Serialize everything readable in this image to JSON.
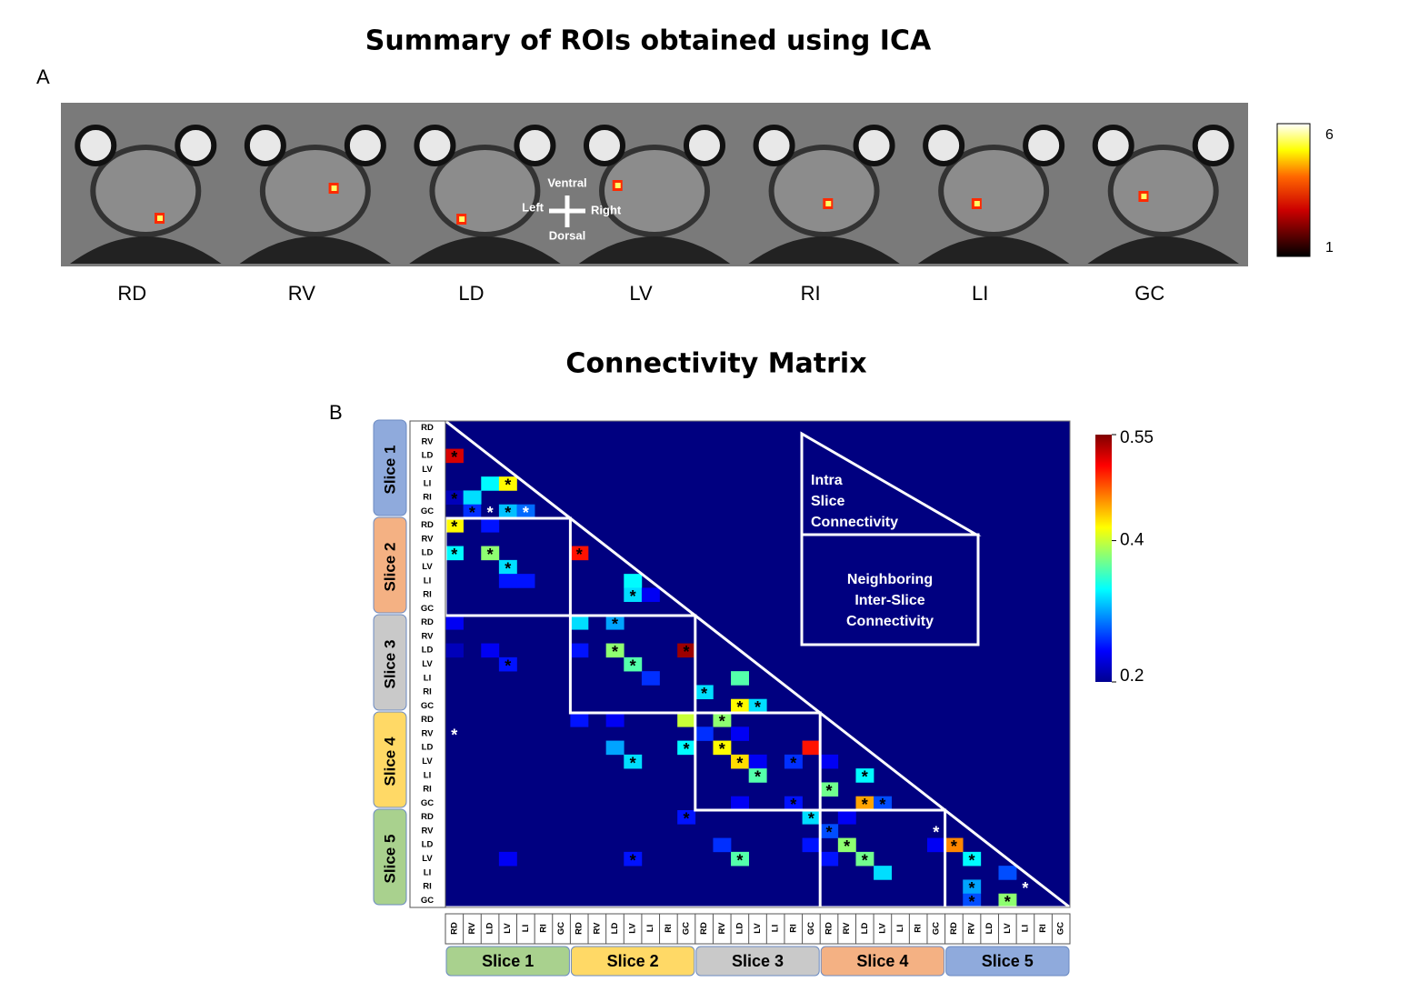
{
  "figure_title": "Summary of ROIs obtained using ICA",
  "panel_a": {
    "label": "A",
    "rois": [
      "RD",
      "RV",
      "LD",
      "LV",
      "RI",
      "LI",
      "GC"
    ],
    "orientation": {
      "up": "Ventral",
      "left": "Left",
      "right": "Right",
      "down": "Dorsal"
    },
    "colorbar": {
      "max": 6,
      "min": 1
    }
  },
  "panel_b": {
    "label": "B",
    "title": "Connectivity Matrix",
    "regions": [
      "RD",
      "RV",
      "LD",
      "LV",
      "LI",
      "RI",
      "GC"
    ],
    "slices": [
      {
        "name": "Slice 1",
        "row_color": "#8faadc",
        "col_color": "#a9d18e"
      },
      {
        "name": "Slice 2",
        "row_color": "#f4b183",
        "col_color": "#ffd966"
      },
      {
        "name": "Slice 3",
        "row_color": "#c9c9c9",
        "col_color": "#c9c9c9"
      },
      {
        "name": "Slice 4",
        "row_color": "#ffd966",
        "col_color": "#f4b183"
      },
      {
        "name": "Slice 5",
        "row_color": "#a9d18e",
        "col_color": "#8faadc"
      }
    ],
    "clim": [
      0.2,
      0.55
    ],
    "cticks": [
      0.55,
      0.4,
      0.2
    ],
    "legend": {
      "intra": [
        "Intra",
        "Slice",
        "Connectivity"
      ],
      "inter": [
        "Neighboring",
        "Inter-Slice",
        "Connectivity"
      ]
    },
    "cells": [
      {
        "row": 2,
        "col": 0,
        "value": 0.52,
        "label": "*"
      },
      {
        "row": 4,
        "col": 2,
        "value": 0.33
      },
      {
        "row": 4,
        "col": 3,
        "value": 0.42,
        "label": "*"
      },
      {
        "row": 5,
        "col": 0,
        "value": 0.22,
        "label": "*"
      },
      {
        "row": 5,
        "col": 1,
        "value": 0.32
      },
      {
        "row": 6,
        "col": 1,
        "value": 0.26,
        "label": "*"
      },
      {
        "row": 6,
        "col": 2,
        "value": 0.2,
        "label": "*",
        "star_color": "white"
      },
      {
        "row": 6,
        "col": 3,
        "value": 0.31,
        "label": "*"
      },
      {
        "row": 6,
        "col": 4,
        "value": 0.28,
        "label": "*",
        "star_color": "white"
      },
      {
        "row": 7,
        "col": 0,
        "value": 0.42,
        "label": "*"
      },
      {
        "row": 7,
        "col": 2,
        "value": 0.25
      },
      {
        "row": 9,
        "col": 0,
        "value": 0.33,
        "label": "*"
      },
      {
        "row": 9,
        "col": 2,
        "value": 0.38,
        "label": "*"
      },
      {
        "row": 9,
        "col": 7,
        "value": 0.5,
        "label": "*"
      },
      {
        "row": 10,
        "col": 3,
        "value": 0.32,
        "label": "*"
      },
      {
        "row": 11,
        "col": 3,
        "value": 0.25
      },
      {
        "row": 11,
        "col": 4,
        "value": 0.25
      },
      {
        "row": 11,
        "col": 10,
        "value": 0.33
      },
      {
        "row": 12,
        "col": 10,
        "value": 0.32,
        "label": "*"
      },
      {
        "row": 12,
        "col": 11,
        "value": 0.24
      },
      {
        "row": 14,
        "col": 0,
        "value": 0.24
      },
      {
        "row": 14,
        "col": 7,
        "value": 0.32
      },
      {
        "row": 14,
        "col": 9,
        "value": 0.3,
        "label": "*"
      },
      {
        "row": 16,
        "col": 0,
        "value": 0.22
      },
      {
        "row": 16,
        "col": 2,
        "value": 0.24
      },
      {
        "row": 16,
        "col": 7,
        "value": 0.25
      },
      {
        "row": 16,
        "col": 9,
        "value": 0.38,
        "label": "*"
      },
      {
        "row": 16,
        "col": 13,
        "value": 0.54,
        "label": "*"
      },
      {
        "row": 17,
        "col": 3,
        "value": 0.25,
        "label": "*"
      },
      {
        "row": 17,
        "col": 10,
        "value": 0.36,
        "label": "*"
      },
      {
        "row": 18,
        "col": 11,
        "value": 0.26
      },
      {
        "row": 18,
        "col": 16,
        "value": 0.36
      },
      {
        "row": 19,
        "col": 14,
        "value": 0.32,
        "label": "*"
      },
      {
        "row": 20,
        "col": 16,
        "value": 0.42,
        "label": "*"
      },
      {
        "row": 20,
        "col": 17,
        "value": 0.32,
        "label": "*"
      },
      {
        "row": 21,
        "col": 7,
        "value": 0.25
      },
      {
        "row": 21,
        "col": 9,
        "value": 0.24
      },
      {
        "row": 21,
        "col": 13,
        "value": 0.4
      },
      {
        "row": 21,
        "col": 15,
        "value": 0.38,
        "label": "*"
      },
      {
        "row": 22,
        "col": 0,
        "value": 0.2,
        "label": "*",
        "star_color": "white"
      },
      {
        "row": 22,
        "col": 14,
        "value": 0.26
      },
      {
        "row": 22,
        "col": 16,
        "value": 0.24
      },
      {
        "row": 23,
        "col": 9,
        "value": 0.3
      },
      {
        "row": 23,
        "col": 13,
        "value": 0.33,
        "label": "*"
      },
      {
        "row": 23,
        "col": 15,
        "value": 0.42,
        "label": "*"
      },
      {
        "row": 23,
        "col": 20,
        "value": 0.5
      },
      {
        "row": 24,
        "col": 10,
        "value": 0.32,
        "label": "*"
      },
      {
        "row": 24,
        "col": 16,
        "value": 0.43,
        "label": "*"
      },
      {
        "row": 24,
        "col": 17,
        "value": 0.24
      },
      {
        "row": 24,
        "col": 19,
        "value": 0.26,
        "label": "*"
      },
      {
        "row": 24,
        "col": 21,
        "value": 0.24
      },
      {
        "row": 25,
        "col": 17,
        "value": 0.36,
        "label": "*"
      },
      {
        "row": 25,
        "col": 23,
        "value": 0.33,
        "label": "*"
      },
      {
        "row": 26,
        "col": 21,
        "value": 0.37,
        "label": "*"
      },
      {
        "row": 27,
        "col": 16,
        "value": 0.24
      },
      {
        "row": 27,
        "col": 19,
        "value": 0.25,
        "label": "*"
      },
      {
        "row": 27,
        "col": 23,
        "value": 0.45,
        "label": "*"
      },
      {
        "row": 27,
        "col": 24,
        "value": 0.27,
        "label": "*"
      },
      {
        "row": 28,
        "col": 13,
        "value": 0.25,
        "label": "*"
      },
      {
        "row": 28,
        "col": 20,
        "value": 0.32,
        "label": "*"
      },
      {
        "row": 28,
        "col": 22,
        "value": 0.24
      },
      {
        "row": 29,
        "col": 21,
        "value": 0.27,
        "label": "*"
      },
      {
        "row": 29,
        "col": 27,
        "value": 0.2,
        "label": "*",
        "star_color": "white"
      },
      {
        "row": 30,
        "col": 15,
        "value": 0.26
      },
      {
        "row": 30,
        "col": 20,
        "value": 0.25
      },
      {
        "row": 30,
        "col": 22,
        "value": 0.38,
        "label": "*"
      },
      {
        "row": 30,
        "col": 27,
        "value": 0.24
      },
      {
        "row": 30,
        "col": 28,
        "value": 0.46,
        "label": "*"
      },
      {
        "row": 31,
        "col": 3,
        "value": 0.24
      },
      {
        "row": 31,
        "col": 10,
        "value": 0.25,
        "label": "*"
      },
      {
        "row": 31,
        "col": 16,
        "value": 0.36,
        "label": "*"
      },
      {
        "row": 31,
        "col": 21,
        "value": 0.25
      },
      {
        "row": 31,
        "col": 23,
        "value": 0.37,
        "label": "*"
      },
      {
        "row": 31,
        "col": 29,
        "value": 0.33,
        "label": "*"
      },
      {
        "row": 32,
        "col": 24,
        "value": 0.32
      },
      {
        "row": 32,
        "col": 31,
        "value": 0.27
      },
      {
        "row": 33,
        "col": 29,
        "value": 0.3,
        "label": "*"
      },
      {
        "row": 33,
        "col": 32,
        "value": 0.2,
        "label": "*",
        "star_color": "white"
      },
      {
        "row": 34,
        "col": 29,
        "value": 0.27,
        "label": "*"
      },
      {
        "row": 34,
        "col": 31,
        "value": 0.38,
        "label": "*"
      }
    ]
  }
}
